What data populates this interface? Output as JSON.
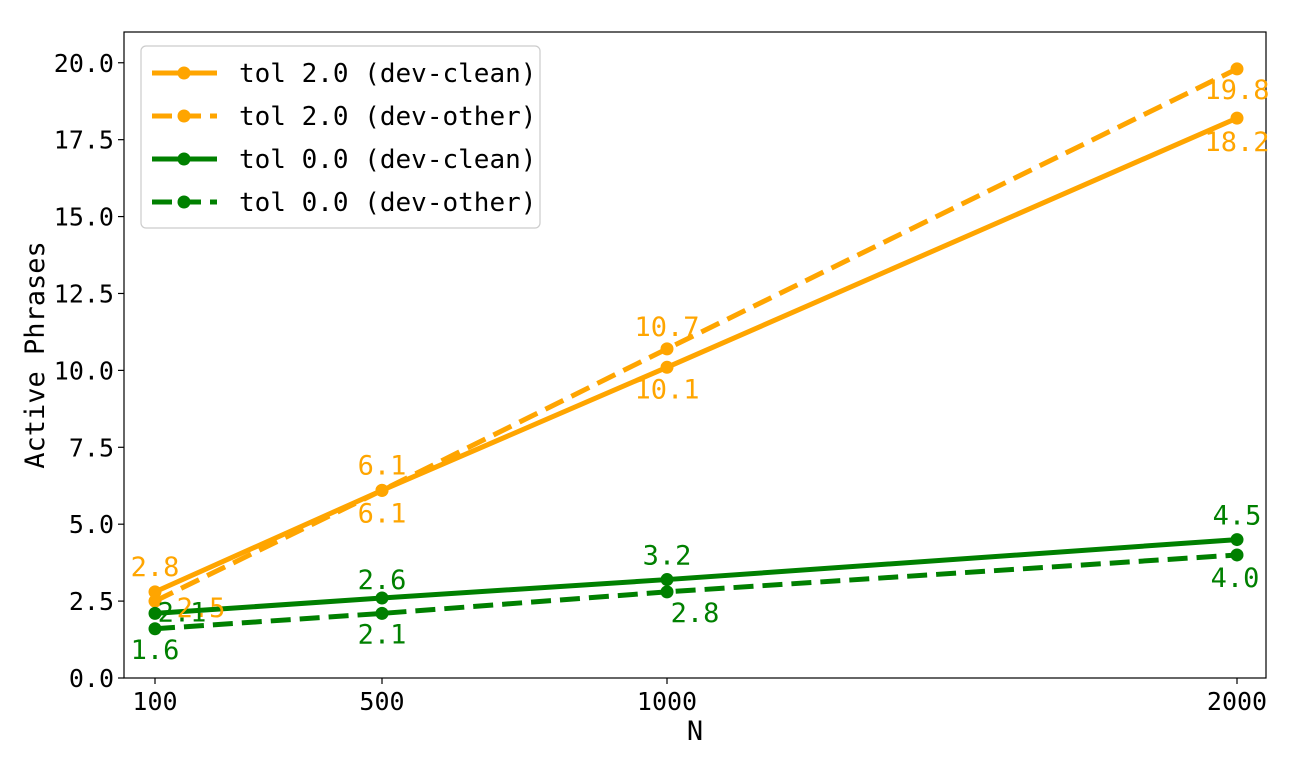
{
  "chart_data": {
    "type": "line",
    "xlabel": "N",
    "ylabel": "Active Phrases",
    "x": [
      100,
      500,
      1000,
      2000
    ],
    "x_tick_labels": [
      "100",
      "500",
      "1000",
      "2000"
    ],
    "ylim": [
      0,
      21
    ],
    "y_ticks": [
      0.0,
      2.5,
      5.0,
      7.5,
      10.0,
      12.5,
      15.0,
      17.5,
      20.0
    ],
    "y_tick_labels": [
      "0.0",
      "2.5",
      "5.0",
      "7.5",
      "10.0",
      "12.5",
      "15.0",
      "17.5",
      "20.0"
    ],
    "grid": false,
    "legend_position": "top-left",
    "series": [
      {
        "name": "tol 2.0 (dev-clean)",
        "color": "#FFA500",
        "style": "solid",
        "values": [
          2.8,
          6.1,
          10.1,
          18.2
        ],
        "labels": [
          "2.8",
          "6.1",
          "10.1",
          "18.2"
        ]
      },
      {
        "name": "tol 2.0 (dev-other)",
        "color": "#FFA500",
        "style": "dashed",
        "values": [
          2.5,
          6.1,
          10.7,
          19.8
        ],
        "labels": [
          "2.5",
          "6.1",
          "10.7",
          "19.8"
        ]
      },
      {
        "name": "tol 0.0 (dev-clean)",
        "color": "#008000",
        "style": "solid",
        "values": [
          2.1,
          2.6,
          3.2,
          4.5
        ],
        "labels": [
          "2.1",
          "2.6",
          "3.2",
          "4.5"
        ]
      },
      {
        "name": "tol 0.0 (dev-other)",
        "color": "#008000",
        "style": "dashed",
        "values": [
          1.6,
          2.1,
          2.8,
          4.0
        ],
        "labels": [
          "1.6",
          "2.1",
          "2.8",
          "4.0"
        ]
      }
    ]
  }
}
